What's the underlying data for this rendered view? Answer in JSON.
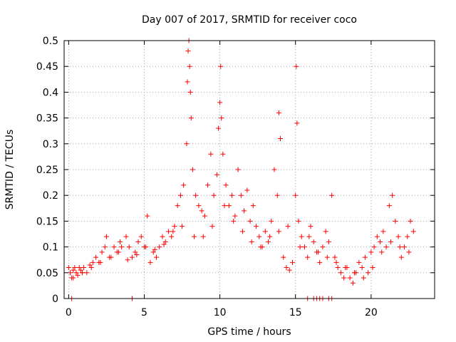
{
  "chart_data": {
    "type": "scatter",
    "title": "Day 007 of 2017, SRMTID for receiver coco",
    "xlabel": "GPS time / hours",
    "ylabel": "SRMTID / TECUs",
    "xlim": [
      -0.3,
      24.2
    ],
    "ylim": [
      0,
      0.5
    ],
    "x_ticks": [
      0,
      5,
      10,
      15,
      20
    ],
    "x_tick_labels": [
      "0",
      "5",
      "10",
      "15",
      "20"
    ],
    "y_ticks": [
      0,
      0.05,
      0.1,
      0.15,
      0.2,
      0.25,
      0.3,
      0.35,
      0.4,
      0.45,
      0.5
    ],
    "y_tick_labels": [
      "0",
      "0.05",
      "0.1",
      "0.15",
      "0.2",
      "0.25",
      "0.3",
      "0.35",
      "0.4",
      "0.45",
      "0.5"
    ],
    "grid": true,
    "marker_color": "#ff0000",
    "series": [
      {
        "name": "SRMTID",
        "marker": "plus",
        "x": [
          0.0,
          0.1,
          0.2,
          0.3,
          0.4,
          0.5,
          0.6,
          0.7,
          0.8,
          0.9,
          1.0,
          1.2,
          1.4,
          1.6,
          1.8,
          2.0,
          2.2,
          2.4,
          2.5,
          2.8,
          3.0,
          3.2,
          3.4,
          3.5,
          3.8,
          4.0,
          4.2,
          4.4,
          4.6,
          4.8,
          5.0,
          5.2,
          5.4,
          5.6,
          5.8,
          6.0,
          6.2,
          6.4,
          6.6,
          6.8,
          7.0,
          7.2,
          7.4,
          7.6,
          7.8,
          7.85,
          7.9,
          7.95,
          8.0,
          8.05,
          8.1,
          8.2,
          8.4,
          8.6,
          8.8,
          9.0,
          9.2,
          9.4,
          9.6,
          9.8,
          9.9,
          10.0,
          10.05,
          10.1,
          10.2,
          10.4,
          10.6,
          10.8,
          11.0,
          11.2,
          11.4,
          11.6,
          11.8,
          12.0,
          12.2,
          12.4,
          12.6,
          12.8,
          13.0,
          13.2,
          13.4,
          13.6,
          13.8,
          13.9,
          14.0,
          14.2,
          14.4,
          14.6,
          14.8,
          15.0,
          15.05,
          15.1,
          15.2,
          15.4,
          15.6,
          15.8,
          16.0,
          16.2,
          16.4,
          16.6,
          16.8,
          17.0,
          17.2,
          17.4,
          17.6,
          17.8,
          18.0,
          18.2,
          18.4,
          18.6,
          18.8,
          19.0,
          19.2,
          19.4,
          19.6,
          19.8,
          20.0,
          20.2,
          20.4,
          20.6,
          20.8,
          21.0,
          21.2,
          21.4,
          21.6,
          21.8,
          22.0,
          22.2,
          22.4,
          22.6,
          22.8,
          0.3,
          0.9,
          1.5,
          2.1,
          2.7,
          3.3,
          3.9,
          4.5,
          5.1,
          5.7,
          6.3,
          6.9,
          7.5,
          8.3,
          8.9,
          9.5,
          10.3,
          10.9,
          11.5,
          12.1,
          12.7,
          13.3,
          13.9,
          14.5,
          15.3,
          15.9,
          16.5,
          17.1,
          17.7,
          18.3,
          18.9,
          19.5,
          20.1,
          20.7,
          21.3,
          21.9,
          22.5,
          0.2,
          4.2,
          15.8,
          16.2,
          16.4,
          16.6,
          16.8,
          17.2,
          17.4
        ],
        "y": [
          0.06,
          0.05,
          0.04,
          0.055,
          0.06,
          0.05,
          0.045,
          0.06,
          0.055,
          0.05,
          0.06,
          0.05,
          0.065,
          0.07,
          0.08,
          0.07,
          0.09,
          0.1,
          0.12,
          0.08,
          0.1,
          0.09,
          0.11,
          0.1,
          0.12,
          0.1,
          0.08,
          0.09,
          0.11,
          0.12,
          0.1,
          0.16,
          0.07,
          0.09,
          0.08,
          0.1,
          0.12,
          0.11,
          0.13,
          0.12,
          0.14,
          0.18,
          0.2,
          0.22,
          0.3,
          0.42,
          0.48,
          0.5,
          0.45,
          0.4,
          0.35,
          0.25,
          0.2,
          0.18,
          0.17,
          0.16,
          0.22,
          0.28,
          0.2,
          0.24,
          0.33,
          0.38,
          0.45,
          0.35,
          0.28,
          0.22,
          0.18,
          0.2,
          0.16,
          0.25,
          0.2,
          0.17,
          0.21,
          0.15,
          0.18,
          0.14,
          0.12,
          0.1,
          0.13,
          0.11,
          0.15,
          0.25,
          0.2,
          0.36,
          0.31,
          0.08,
          0.06,
          0.055,
          0.07,
          0.2,
          0.45,
          0.34,
          0.15,
          0.12,
          0.1,
          0.08,
          0.14,
          0.11,
          0.09,
          0.07,
          0.1,
          0.13,
          0.11,
          0.2,
          0.08,
          0.06,
          0.05,
          0.04,
          0.06,
          0.04,
          0.03,
          0.05,
          0.07,
          0.06,
          0.08,
          0.05,
          0.09,
          0.1,
          0.12,
          0.11,
          0.13,
          0.1,
          0.18,
          0.2,
          0.15,
          0.12,
          0.08,
          0.1,
          0.12,
          0.15,
          0.13,
          0.04,
          0.05,
          0.06,
          0.07,
          0.08,
          0.09,
          0.075,
          0.085,
          0.1,
          0.095,
          0.105,
          0.13,
          0.14,
          0.12,
          0.12,
          0.14,
          0.18,
          0.15,
          0.13,
          0.11,
          0.1,
          0.12,
          0.13,
          0.14,
          0.1,
          0.12,
          0.09,
          0.08,
          0.07,
          0.06,
          0.05,
          0.04,
          0.06,
          0.09,
          0.11,
          0.1,
          0.09,
          0.0,
          0.0,
          0.0,
          0.0,
          0.0,
          0.0,
          0.0,
          0.0,
          0.0
        ]
      }
    ]
  }
}
